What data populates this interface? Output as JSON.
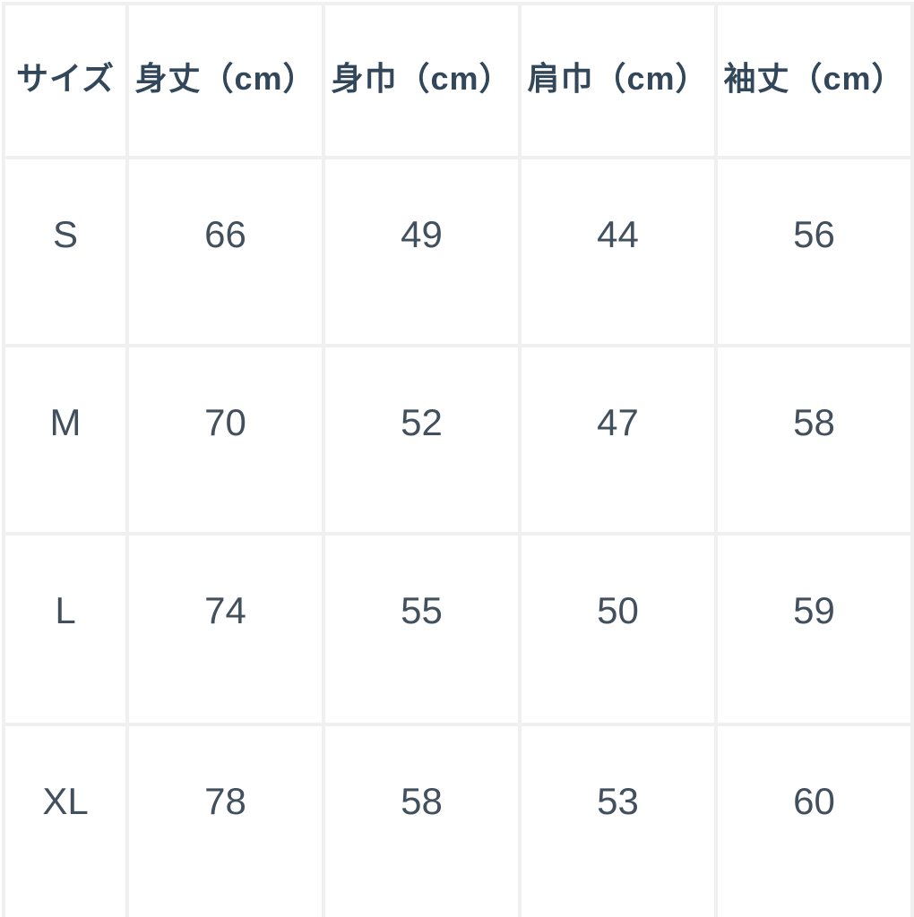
{
  "colors": {
    "header_text": "#33475b",
    "body_text": "#42505e",
    "grid_border": "#f0f0f0",
    "background": "#ffffff"
  },
  "chart_data": {
    "type": "table",
    "title": "",
    "columns": [
      "サイズ",
      "身丈（cm）",
      "身巾（cm）",
      "肩巾（cm）",
      "袖丈（cm）"
    ],
    "rows": [
      {
        "size": "S",
        "body_length": "66",
        "body_width": "49",
        "shoulder_width": "44",
        "sleeve_length": "56"
      },
      {
        "size": "M",
        "body_length": "70",
        "body_width": "52",
        "shoulder_width": "47",
        "sleeve_length": "58"
      },
      {
        "size": "L",
        "body_length": "74",
        "body_width": "55",
        "shoulder_width": "50",
        "sleeve_length": "59"
      },
      {
        "size": "XL",
        "body_length": "78",
        "body_width": "58",
        "shoulder_width": "53",
        "sleeve_length": "60"
      }
    ]
  }
}
